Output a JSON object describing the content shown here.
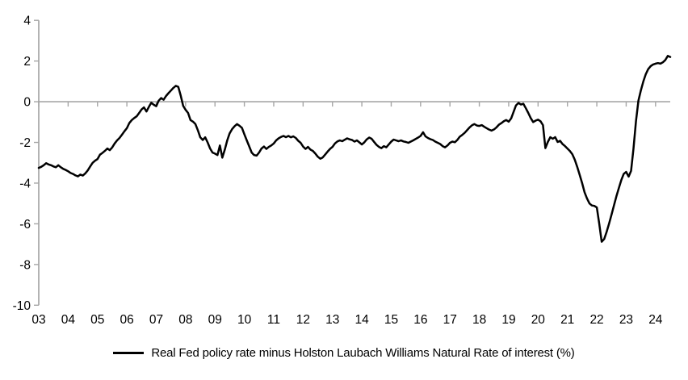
{
  "chart_data": {
    "type": "line",
    "title": "",
    "legend_label": "Real Fed policy rate minus Holston Laubach Williams Natural Rate of interest (%)",
    "frequency": "monthly",
    "x_start_year": 2003,
    "x_tick_labels": [
      "03",
      "04",
      "05",
      "06",
      "07",
      "08",
      "09",
      "10",
      "11",
      "12",
      "13",
      "14",
      "15",
      "16",
      "17",
      "18",
      "19",
      "20",
      "21",
      "22",
      "23",
      "24"
    ],
    "y_tick_labels": [
      "4",
      "2",
      "0",
      "-2",
      "-4",
      "-6",
      "-8",
      "-10"
    ],
    "y_tick_values": [
      4,
      2,
      0,
      -2,
      -4,
      -6,
      -8,
      -10
    ],
    "ylim": [
      -10,
      4
    ],
    "grid": "none",
    "legend_position": "bottom-center",
    "zero_line": true,
    "series": [
      {
        "name": "Real Fed policy rate minus Holston Laubach Williams Natural Rate of interest (%)",
        "values": [
          -3.25,
          -3.2,
          -3.12,
          -3.02,
          -3.08,
          -3.12,
          -3.18,
          -3.22,
          -3.12,
          -3.22,
          -3.3,
          -3.35,
          -3.42,
          -3.5,
          -3.55,
          -3.62,
          -3.67,
          -3.58,
          -3.63,
          -3.52,
          -3.38,
          -3.18,
          -3.0,
          -2.9,
          -2.82,
          -2.6,
          -2.52,
          -2.42,
          -2.3,
          -2.38,
          -2.25,
          -2.05,
          -1.9,
          -1.78,
          -1.62,
          -1.45,
          -1.3,
          -1.05,
          -0.9,
          -0.8,
          -0.72,
          -0.55,
          -0.38,
          -0.28,
          -0.48,
          -0.25,
          -0.05,
          -0.15,
          -0.22,
          0.05,
          0.18,
          0.1,
          0.28,
          0.42,
          0.55,
          0.68,
          0.78,
          0.73,
          0.3,
          -0.2,
          -0.4,
          -0.55,
          -0.9,
          -0.98,
          -1.1,
          -1.4,
          -1.75,
          -1.88,
          -1.75,
          -2.0,
          -2.3,
          -2.5,
          -2.55,
          -2.62,
          -2.15,
          -2.75,
          -2.35,
          -1.9,
          -1.55,
          -1.35,
          -1.2,
          -1.1,
          -1.18,
          -1.28,
          -1.6,
          -1.9,
          -2.2,
          -2.5,
          -2.62,
          -2.65,
          -2.5,
          -2.3,
          -2.2,
          -2.32,
          -2.22,
          -2.15,
          -2.05,
          -1.9,
          -1.8,
          -1.73,
          -1.68,
          -1.74,
          -1.68,
          -1.75,
          -1.7,
          -1.78,
          -1.92,
          -2.02,
          -2.2,
          -2.32,
          -2.22,
          -2.35,
          -2.42,
          -2.55,
          -2.7,
          -2.8,
          -2.74,
          -2.6,
          -2.45,
          -2.32,
          -2.22,
          -2.05,
          -1.95,
          -1.9,
          -1.94,
          -1.87,
          -1.8,
          -1.85,
          -1.88,
          -1.96,
          -1.9,
          -2.0,
          -2.1,
          -2.0,
          -1.85,
          -1.76,
          -1.82,
          -1.97,
          -2.12,
          -2.22,
          -2.28,
          -2.18,
          -2.24,
          -2.1,
          -1.96,
          -1.86,
          -1.9,
          -1.94,
          -1.9,
          -1.95,
          -1.98,
          -2.02,
          -1.96,
          -1.9,
          -1.83,
          -1.76,
          -1.68,
          -1.5,
          -1.7,
          -1.78,
          -1.84,
          -1.88,
          -1.96,
          -2.02,
          -2.08,
          -2.18,
          -2.24,
          -2.15,
          -2.02,
          -1.96,
          -1.99,
          -1.88,
          -1.72,
          -1.63,
          -1.53,
          -1.4,
          -1.26,
          -1.16,
          -1.1,
          -1.17,
          -1.19,
          -1.15,
          -1.23,
          -1.3,
          -1.37,
          -1.42,
          -1.36,
          -1.26,
          -1.13,
          -1.05,
          -0.96,
          -0.9,
          -0.98,
          -0.82,
          -0.5,
          -0.18,
          -0.06,
          -0.14,
          -0.1,
          -0.32,
          -0.55,
          -0.8,
          -1.0,
          -0.93,
          -0.88,
          -0.96,
          -1.15,
          -2.28,
          -1.98,
          -1.74,
          -1.82,
          -1.74,
          -1.98,
          -1.92,
          -2.08,
          -2.18,
          -2.3,
          -2.42,
          -2.58,
          -2.85,
          -3.2,
          -3.6,
          -4.0,
          -4.45,
          -4.75,
          -5.0,
          -5.1,
          -5.12,
          -5.2,
          -6.0,
          -6.88,
          -6.75,
          -6.4,
          -6.0,
          -5.55,
          -5.1,
          -4.65,
          -4.25,
          -3.85,
          -3.55,
          -3.45,
          -3.68,
          -3.4,
          -2.3,
          -0.95,
          0.05,
          0.55,
          1.0,
          1.35,
          1.6,
          1.75,
          1.83,
          1.87,
          1.9,
          1.87,
          1.94,
          2.05,
          2.25,
          2.2
        ]
      }
    ],
    "colors": {
      "line": "#000000",
      "axis": "#a6a6a6",
      "text": "#000000",
      "background": "#ffffff"
    }
  }
}
